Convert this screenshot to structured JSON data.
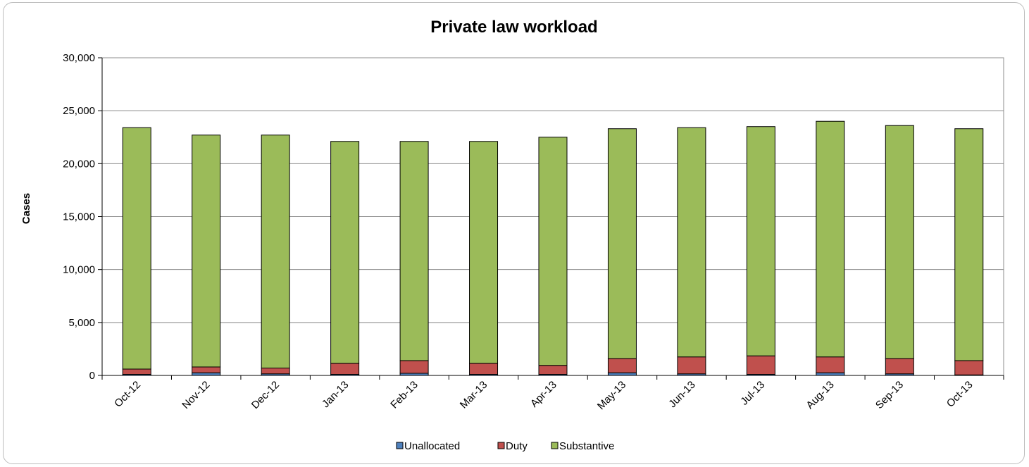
{
  "chart_data": {
    "type": "bar",
    "stacked": true,
    "title": "Private law workload",
    "xlabel": "",
    "ylabel": "Cases",
    "ylim": [
      0,
      30000
    ],
    "yticks": [
      0,
      5000,
      10000,
      15000,
      20000,
      25000,
      30000
    ],
    "ytick_labels": [
      "0",
      "5,000",
      "10,000",
      "15,000",
      "20,000",
      "25,000",
      "30,000"
    ],
    "grid": true,
    "legend": "bottom",
    "categories": [
      "Oct-12",
      "Nov-12",
      "Dec-12",
      "Jan-13",
      "Feb-13",
      "Mar-13",
      "Apr-13",
      "May-13",
      "Jun-13",
      "Jul-13",
      "Aug-13",
      "Sep-13",
      "Oct-13"
    ],
    "series": [
      {
        "name": "Unallocated",
        "color": "#4f81bd",
        "values": [
          100,
          250,
          150,
          100,
          200,
          100,
          100,
          250,
          150,
          100,
          250,
          150,
          50
        ]
      },
      {
        "name": "Duty",
        "color": "#c0504d",
        "values": [
          500,
          550,
          550,
          1050,
          1200,
          1050,
          850,
          1350,
          1600,
          1750,
          1500,
          1450,
          1350
        ]
      },
      {
        "name": "Substantive",
        "color": "#9bbb59",
        "values": [
          22800,
          21900,
          22000,
          20950,
          20700,
          20950,
          21550,
          21700,
          21650,
          21650,
          22250,
          22000,
          21900
        ]
      }
    ]
  }
}
